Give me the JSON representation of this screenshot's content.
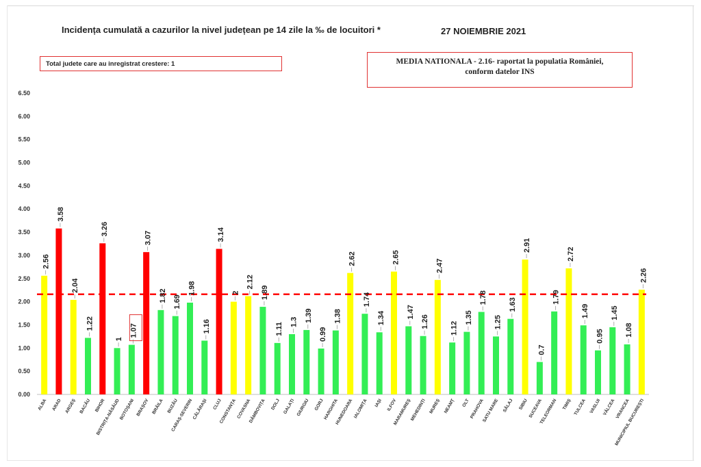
{
  "header": {
    "title": "Incidența cumulată a cazurilor la nivel județean pe 14 zile la ‰ de locuitori *",
    "date": "27 NOIEMBRIE 2021"
  },
  "notes": {
    "growth_counties": "Total judete care au inregistrat crestere: 1",
    "national_line1": "MEDIA NATIONALA - 2.16-  raportat la populatia României,",
    "national_line2": "conform datelor INS"
  },
  "colors": {
    "red": "#ff0000",
    "yellow": "#ffff00",
    "green": "#33ee55",
    "average_line": "#ff0000",
    "highlight_box": "#e03030"
  },
  "chart_data": {
    "type": "bar",
    "title": "Incidența cumulată a cazurilor la nivel județean pe 14 zile la ‰ de locuitori *",
    "xlabel": "",
    "ylabel": "",
    "ylim": [
      0,
      6.5
    ],
    "yticks": [
      "0.00",
      "0.50",
      "1.00",
      "1.50",
      "2.00",
      "2.50",
      "3.00",
      "3.50",
      "4.00",
      "4.50",
      "5.00",
      "5.50",
      "6.00",
      "6.50"
    ],
    "grid": false,
    "reference_line": {
      "value": 2.16,
      "style": "dashed",
      "color": "red"
    },
    "highlighted_category": "BOTOȘANI",
    "categories": [
      "ALBA",
      "ARAD",
      "ARGEȘ",
      "BACĂU",
      "BIHOR",
      "BISTRIȚA-NĂSĂUD",
      "BOTOȘANI",
      "BRAȘOV",
      "BRĂILA",
      "BUZĂU",
      "CARAȘ-SEVERIN",
      "CĂLĂRAȘI",
      "CLUJ",
      "CONSTANȚA",
      "COVASNA",
      "DÂMBOVIȚA",
      "DOLJ",
      "GALAȚI",
      "GIURGIU",
      "GORJ",
      "HARGHITA",
      "HUNEDOARA",
      "IALOMIȚA",
      "IAȘI",
      "ILFOV",
      "MARAMUREȘ",
      "MEHEDINȚI",
      "MUREȘ",
      "NEAMȚ",
      "OLT",
      "PRAHOVA",
      "SATU MARE",
      "SĂLAJ",
      "SIBIU",
      "SUCEAVA",
      "TELEORMAN",
      "TIMIȘ",
      "TULCEA",
      "VASLUI",
      "VÂLCEA",
      "VRANCEA",
      "MUNICIPIUL BUCUREȘTI"
    ],
    "values": [
      2.56,
      3.58,
      2.04,
      1.22,
      3.26,
      1,
      1.07,
      3.07,
      1.82,
      1.69,
      1.98,
      1.16,
      3.14,
      2,
      2.12,
      1.89,
      1.11,
      1.3,
      1.39,
      0.99,
      1.38,
      2.62,
      1.74,
      1.34,
      2.65,
      1.47,
      1.26,
      2.47,
      1.12,
      1.35,
      1.78,
      1.25,
      1.63,
      2.91,
      0.7,
      1.79,
      2.72,
      1.49,
      0.95,
      1.45,
      1.08,
      2.26
    ],
    "value_labels": [
      "2.56",
      "3.58",
      "2.04",
      "1.22",
      "3.26",
      "1",
      "1.07",
      "3.07",
      "1.82",
      "1.69",
      "1.98",
      "1.16",
      "3.14",
      "2",
      "2.12",
      "1.89",
      "1.11",
      "1.3",
      "1.39",
      "0.99",
      "1.38",
      "2.62",
      "1.74",
      "1.34",
      "2.65",
      "1.47",
      "1.26",
      "2.47",
      "1.12",
      "1.35",
      "1.78",
      "1.25",
      "1.63",
      "2.91",
      "0.7",
      "1.79",
      "2.72",
      "1.49",
      "0.95",
      "1.45",
      "1.08",
      "2.26"
    ],
    "bar_colors": [
      "yellow",
      "red",
      "yellow",
      "green",
      "red",
      "green",
      "green",
      "red",
      "green",
      "green",
      "green",
      "green",
      "red",
      "yellow",
      "yellow",
      "green",
      "green",
      "green",
      "green",
      "green",
      "green",
      "yellow",
      "green",
      "green",
      "yellow",
      "green",
      "green",
      "yellow",
      "green",
      "green",
      "green",
      "green",
      "green",
      "yellow",
      "green",
      "green",
      "yellow",
      "green",
      "green",
      "green",
      "green",
      "yellow"
    ]
  }
}
